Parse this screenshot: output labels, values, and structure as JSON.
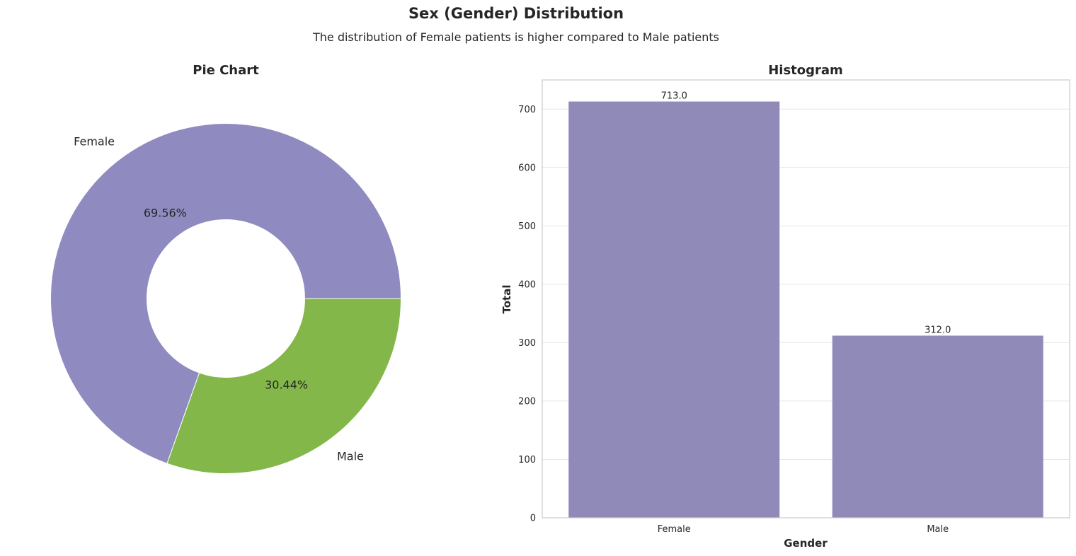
{
  "figure": {
    "title": "Sex (Gender) Distribution",
    "subtitle": "The distribution of Female patients is higher compared to Male patients"
  },
  "chart_data": [
    {
      "type": "pie",
      "title": "Pie Chart",
      "donut": true,
      "categories": [
        "Female",
        "Male"
      ],
      "values": [
        69.56,
        30.44
      ],
      "value_labels": [
        "69.56%",
        "30.44%"
      ],
      "colors": [
        "#8f8ac0",
        "#83b74a"
      ]
    },
    {
      "type": "bar",
      "title": "Histogram",
      "categories": [
        "Female",
        "Male"
      ],
      "values": [
        713.0,
        312.0
      ],
      "value_labels": [
        "713.0",
        "312.0"
      ],
      "xlabel": "Gender",
      "ylabel": "Total",
      "ylim": [
        0,
        750
      ],
      "yticks": [
        0,
        100,
        200,
        300,
        400,
        500,
        600,
        700
      ],
      "grid": "horizontal",
      "colors": [
        "#8f8ab8"
      ]
    }
  ]
}
